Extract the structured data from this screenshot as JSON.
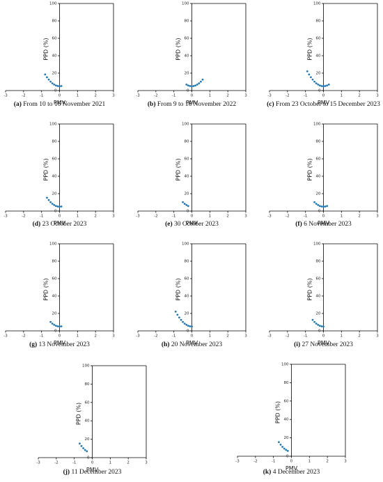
{
  "chart_data": [
    {
      "type": "scatter",
      "label": "(a)",
      "title": "From 10 to 16 November 2021",
      "xlabel": "PMV",
      "ylabel": "PPD (%)",
      "color": "#1f77b4",
      "xlim": [
        -3,
        3
      ],
      "ylim": [
        0,
        100
      ],
      "xticks": [
        -3,
        -2,
        -1,
        0,
        1,
        2,
        3
      ],
      "yticks": [
        0,
        20,
        40,
        60,
        80,
        100
      ],
      "x": [
        -0.8,
        -0.7,
        -0.6,
        -0.5,
        -0.4,
        -0.3,
        -0.2,
        -0.1,
        0,
        0.1
      ],
      "values": [
        18.5,
        15.3,
        12.6,
        10.2,
        8.3,
        6.9,
        5.8,
        5.2,
        5,
        5.2
      ]
    },
    {
      "type": "scatter",
      "label": "(b)",
      "title": "From 9 to 16 November 2022",
      "xlabel": "PMV",
      "ylabel": "PPD (%)",
      "color": "#1f77b4",
      "xlim": [
        -3,
        3
      ],
      "ylim": [
        0,
        100
      ],
      "xticks": [
        -3,
        -2,
        -1,
        0,
        1,
        2,
        3
      ],
      "yticks": [
        0,
        20,
        40,
        60,
        80,
        100
      ],
      "x": [
        -0.3,
        -0.2,
        -0.1,
        0,
        0.1,
        0.2,
        0.3,
        0.4,
        0.5,
        0.6
      ],
      "values": [
        6.9,
        5.8,
        5.2,
        5,
        5.2,
        5.8,
        6.9,
        8.3,
        10.2,
        12.6
      ]
    },
    {
      "type": "scatter",
      "label": "(c)",
      "title": "From 23 October to 15 December 2023",
      "xlabel": "PMV",
      "ylabel": "PPD (%)",
      "color": "#1f77b4",
      "xlim": [
        -3,
        3
      ],
      "ylim": [
        0,
        100
      ],
      "xticks": [
        -3,
        -2,
        -1,
        0,
        1,
        2,
        3
      ],
      "yticks": [
        0,
        20,
        40,
        60,
        80,
        100
      ],
      "x": [
        -0.9,
        -0.8,
        -0.7,
        -0.6,
        -0.5,
        -0.4,
        -0.3,
        -0.2,
        -0.1,
        0,
        0.1,
        0.2,
        0.3
      ],
      "values": [
        22.1,
        18.5,
        15.3,
        12.6,
        10.2,
        8.3,
        6.9,
        5.8,
        5.2,
        5,
        5.2,
        5.8,
        6.9
      ]
    },
    {
      "type": "scatter",
      "label": "(d)",
      "title": "23 October 2023",
      "xlabel": "PMV",
      "ylabel": "PPD (%)",
      "color": "#1f77b4",
      "xlim": [
        -3,
        3
      ],
      "ylim": [
        0,
        100
      ],
      "xticks": [
        -3,
        -2,
        -1,
        0,
        1,
        2,
        3
      ],
      "yticks": [
        0,
        20,
        40,
        60,
        80,
        100
      ],
      "x": [
        -0.7,
        -0.6,
        -0.5,
        -0.4,
        -0.3,
        -0.2,
        -0.1,
        0,
        0.1
      ],
      "values": [
        15.3,
        12.6,
        10.2,
        8.3,
        6.9,
        5.8,
        5.2,
        5,
        5.2
      ]
    },
    {
      "type": "scatter",
      "label": "(e)",
      "title": "30 October 2023",
      "xlabel": "PMV",
      "ylabel": "PPD (%)",
      "color": "#1f77b4",
      "xlim": [
        -3,
        3
      ],
      "ylim": [
        0,
        100
      ],
      "xticks": [
        -3,
        -2,
        -1,
        0,
        1,
        2,
        3
      ],
      "yticks": [
        0,
        20,
        40,
        60,
        80,
        100
      ],
      "x": [
        -0.5,
        -0.4,
        -0.3,
        -0.2
      ],
      "values": [
        10.2,
        8.3,
        6.9,
        5.8
      ]
    },
    {
      "type": "scatter",
      "label": "(f)",
      "title": "6 November 2023",
      "xlabel": "PMV",
      "ylabel": "PPD (%)",
      "color": "#1f77b4",
      "xlim": [
        -3,
        3
      ],
      "ylim": [
        0,
        100
      ],
      "xticks": [
        -3,
        -2,
        -1,
        0,
        1,
        2,
        3
      ],
      "yticks": [
        0,
        20,
        40,
        60,
        80,
        100
      ],
      "x": [
        -0.5,
        -0.4,
        -0.3,
        -0.2,
        -0.1,
        0,
        0.1,
        0.2
      ],
      "values": [
        10.2,
        8.3,
        6.9,
        5.8,
        5.2,
        5,
        5.2,
        5.8
      ]
    },
    {
      "type": "scatter",
      "label": "(g)",
      "title": "13 November 2023",
      "xlabel": "PMV",
      "ylabel": "PPD (%)",
      "color": "#1f77b4",
      "xlim": [
        -3,
        3
      ],
      "ylim": [
        0,
        100
      ],
      "xticks": [
        -3,
        -2,
        -1,
        0,
        1,
        2,
        3
      ],
      "yticks": [
        0,
        20,
        40,
        60,
        80,
        100
      ],
      "x": [
        -0.5,
        -0.4,
        -0.3,
        -0.2,
        -0.1,
        0,
        0.1
      ],
      "values": [
        10.2,
        8.3,
        6.9,
        5.8,
        5.2,
        5,
        5.2
      ]
    },
    {
      "type": "scatter",
      "label": "(h)",
      "title": "20 November 2023",
      "xlabel": "PMV",
      "ylabel": "PPD (%)",
      "color": "#1f77b4",
      "xlim": [
        -3,
        3
      ],
      "ylim": [
        0,
        100
      ],
      "xticks": [
        -3,
        -2,
        -1,
        0,
        1,
        2,
        3
      ],
      "yticks": [
        0,
        20,
        40,
        60,
        80,
        100
      ],
      "x": [
        -0.9,
        -0.8,
        -0.7,
        -0.6,
        -0.5,
        -0.4,
        -0.3,
        -0.2,
        -0.1,
        0
      ],
      "values": [
        22.1,
        18.5,
        15.3,
        12.6,
        10.2,
        8.3,
        6.9,
        5.8,
        5.2,
        5
      ]
    },
    {
      "type": "scatter",
      "label": "(i)",
      "title": "27 November 2023",
      "xlabel": "PMV",
      "ylabel": "PPD (%)",
      "color": "#1f77b4",
      "xlim": [
        -3,
        3
      ],
      "ylim": [
        0,
        100
      ],
      "xticks": [
        -3,
        -2,
        -1,
        0,
        1,
        2,
        3
      ],
      "yticks": [
        0,
        20,
        40,
        60,
        80,
        100
      ],
      "x": [
        -0.6,
        -0.5,
        -0.4,
        -0.3,
        -0.2,
        -0.1,
        0
      ],
      "values": [
        12.6,
        10.2,
        8.3,
        6.9,
        5.8,
        5.2,
        5
      ]
    },
    {
      "type": "scatter",
      "label": "(j)",
      "title": "11 December 2023",
      "xlabel": "PMV",
      "ylabel": "PPD (%)",
      "color": "#1f77b4",
      "xlim": [
        -3,
        3
      ],
      "ylim": [
        0,
        100
      ],
      "xticks": [
        -3,
        -2,
        -1,
        0,
        1,
        2,
        3
      ],
      "yticks": [
        0,
        20,
        40,
        60,
        80,
        100
      ],
      "x": [
        -0.7,
        -0.6,
        -0.5,
        -0.4,
        -0.3
      ],
      "values": [
        15.3,
        12.6,
        10.2,
        8.3,
        6.9
      ]
    },
    {
      "type": "scatter",
      "label": "(k)",
      "title": "4 December 2023",
      "xlabel": "PMV",
      "ylabel": "PPD (%)",
      "color": "#1f77b4",
      "xlim": [
        -3,
        3
      ],
      "ylim": [
        0,
        100
      ],
      "xticks": [
        -3,
        -2,
        -1,
        0,
        1,
        2,
        3
      ],
      "yticks": [
        0,
        20,
        40,
        60,
        80,
        100
      ],
      "x": [
        -0.7,
        -0.6,
        -0.5,
        -0.4,
        -0.3,
        -0.2
      ],
      "values": [
        15.3,
        12.6,
        10.2,
        8.3,
        6.9,
        5.8
      ]
    }
  ]
}
